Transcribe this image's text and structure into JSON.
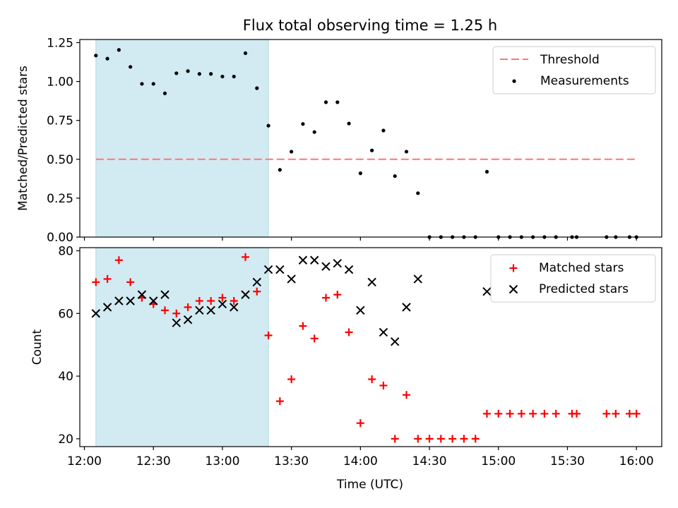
{
  "figure": {
    "title": "Flux total observing time = 1.25 h"
  },
  "colors": {
    "shade": "#add8e6",
    "threshold": "#ff7777",
    "measurements": "#000000",
    "matched": "#ff0000",
    "predicted": "#000000"
  },
  "chart_data": [
    {
      "type": "scatter",
      "panel": "top",
      "ylabel": "Matched/Predicted stars",
      "ylim": [
        0,
        1.27
      ],
      "yticks": [
        "0.00",
        "0.25",
        "0.50",
        "0.75",
        "1.00",
        "1.25"
      ],
      "ytick_values": [
        0,
        0.25,
        0.5,
        0.75,
        1.0,
        1.25
      ],
      "xlim": [
        "11:58",
        "16:11"
      ],
      "shaded_span": [
        "12:05",
        "13:20"
      ],
      "legend": {
        "position": "upper right",
        "entries": [
          "Threshold",
          "Measurements"
        ]
      },
      "threshold": {
        "name": "Threshold",
        "x": [
          "12:05",
          "16:00"
        ],
        "y": 0.5
      },
      "series": [
        {
          "name": "Measurements",
          "points": [
            [
              "12:05",
              1.167
            ],
            [
              "12:10",
              1.147
            ],
            [
              "12:15",
              1.203
            ],
            [
              "12:20",
              1.094
            ],
            [
              "12:25",
              0.985
            ],
            [
              "12:30",
              0.985
            ],
            [
              "12:35",
              0.924
            ],
            [
              "12:40",
              1.053
            ],
            [
              "12:45",
              1.067
            ],
            [
              "12:50",
              1.049
            ],
            [
              "12:55",
              1.049
            ],
            [
              "13:00",
              1.032
            ],
            [
              "13:05",
              1.032
            ],
            [
              "13:10",
              1.182
            ],
            [
              "13:15",
              0.957
            ],
            [
              "13:20",
              0.716
            ],
            [
              "13:25",
              0.432
            ],
            [
              "13:30",
              0.549
            ],
            [
              "13:35",
              0.727
            ],
            [
              "13:40",
              0.675
            ],
            [
              "13:45",
              0.867
            ],
            [
              "13:50",
              0.867
            ],
            [
              "13:55",
              0.73
            ],
            [
              "14:00",
              0.41
            ],
            [
              "14:05",
              0.557
            ],
            [
              "14:10",
              0.685
            ],
            [
              "14:15",
              0.392
            ],
            [
              "14:20",
              0.549
            ],
            [
              "14:25",
              0.282
            ],
            [
              "14:30",
              0
            ],
            [
              "14:35",
              0
            ],
            [
              "14:40",
              0
            ],
            [
              "14:45",
              0
            ],
            [
              "14:50",
              0
            ],
            [
              "14:55",
              0.42
            ],
            [
              "15:00",
              0
            ],
            [
              "15:05",
              0
            ],
            [
              "15:10",
              0
            ],
            [
              "15:15",
              0
            ],
            [
              "15:20",
              0
            ],
            [
              "15:25",
              0
            ],
            [
              "15:32",
              0
            ],
            [
              "15:34",
              0
            ],
            [
              "15:47",
              0
            ],
            [
              "15:51",
              0
            ],
            [
              "15:57",
              0
            ],
            [
              "16:00",
              0
            ]
          ]
        }
      ]
    },
    {
      "type": "scatter",
      "panel": "bottom",
      "xlabel": "Time (UTC)",
      "ylabel": "Count",
      "ylim": [
        17.5,
        81
      ],
      "yticks": [
        "20",
        "40",
        "60",
        "80"
      ],
      "ytick_values": [
        20,
        40,
        60,
        80
      ],
      "xlim": [
        "11:58",
        "16:11"
      ],
      "xticks": [
        "12:00",
        "12:30",
        "13:00",
        "13:30",
        "14:00",
        "14:30",
        "15:00",
        "15:30",
        "16:00"
      ],
      "shaded_span": [
        "12:05",
        "13:20"
      ],
      "legend": {
        "position": "upper right",
        "entries": [
          "Matched stars",
          "Predicted stars"
        ]
      },
      "series": [
        {
          "name": "Matched stars",
          "marker": "+",
          "points": [
            [
              "12:05",
              70
            ],
            [
              "12:10",
              71
            ],
            [
              "12:15",
              77
            ],
            [
              "12:20",
              70
            ],
            [
              "12:25",
              65
            ],
            [
              "12:30",
              63
            ],
            [
              "12:35",
              61
            ],
            [
              "12:40",
              60
            ],
            [
              "12:45",
              62
            ],
            [
              "12:50",
              64
            ],
            [
              "12:55",
              64
            ],
            [
              "13:00",
              65
            ],
            [
              "13:05",
              64
            ],
            [
              "13:10",
              78
            ],
            [
              "13:15",
              67
            ],
            [
              "13:20",
              53
            ],
            [
              "13:25",
              32
            ],
            [
              "13:30",
              39
            ],
            [
              "13:35",
              56
            ],
            [
              "13:40",
              52
            ],
            [
              "13:45",
              65
            ],
            [
              "13:50",
              66
            ],
            [
              "13:55",
              54
            ],
            [
              "14:00",
              25
            ],
            [
              "14:05",
              39
            ],
            [
              "14:10",
              37
            ],
            [
              "14:15",
              20
            ],
            [
              "14:20",
              34
            ],
            [
              "14:25",
              20
            ],
            [
              "14:30",
              20
            ],
            [
              "14:35",
              20
            ],
            [
              "14:40",
              20
            ],
            [
              "14:45",
              20
            ],
            [
              "14:50",
              20
            ],
            [
              "14:55",
              28
            ],
            [
              "15:00",
              28
            ],
            [
              "15:05",
              28
            ],
            [
              "15:10",
              28
            ],
            [
              "15:15",
              28
            ],
            [
              "15:20",
              28
            ],
            [
              "15:25",
              28
            ],
            [
              "15:32",
              28
            ],
            [
              "15:34",
              28
            ],
            [
              "15:47",
              28
            ],
            [
              "15:51",
              28
            ],
            [
              "15:57",
              28
            ],
            [
              "16:00",
              28
            ]
          ]
        },
        {
          "name": "Predicted stars",
          "marker": "x",
          "points": [
            [
              "12:05",
              60
            ],
            [
              "12:10",
              62
            ],
            [
              "12:15",
              64
            ],
            [
              "12:20",
              64
            ],
            [
              "12:25",
              66
            ],
            [
              "12:30",
              64
            ],
            [
              "12:35",
              66
            ],
            [
              "12:40",
              57
            ],
            [
              "12:45",
              58
            ],
            [
              "12:50",
              61
            ],
            [
              "12:55",
              61
            ],
            [
              "13:00",
              63
            ],
            [
              "13:05",
              62
            ],
            [
              "13:10",
              66
            ],
            [
              "13:15",
              70
            ],
            [
              "13:20",
              74
            ],
            [
              "13:25",
              74
            ],
            [
              "13:30",
              71
            ],
            [
              "13:35",
              77
            ],
            [
              "13:40",
              77
            ],
            [
              "13:45",
              75
            ],
            [
              "13:50",
              76
            ],
            [
              "13:55",
              74
            ],
            [
              "14:00",
              61
            ],
            [
              "14:05",
              70
            ],
            [
              "14:10",
              54
            ],
            [
              "14:15",
              51
            ],
            [
              "14:20",
              62
            ],
            [
              "14:25",
              71
            ],
            [
              "14:55",
              67
            ]
          ]
        }
      ]
    }
  ]
}
